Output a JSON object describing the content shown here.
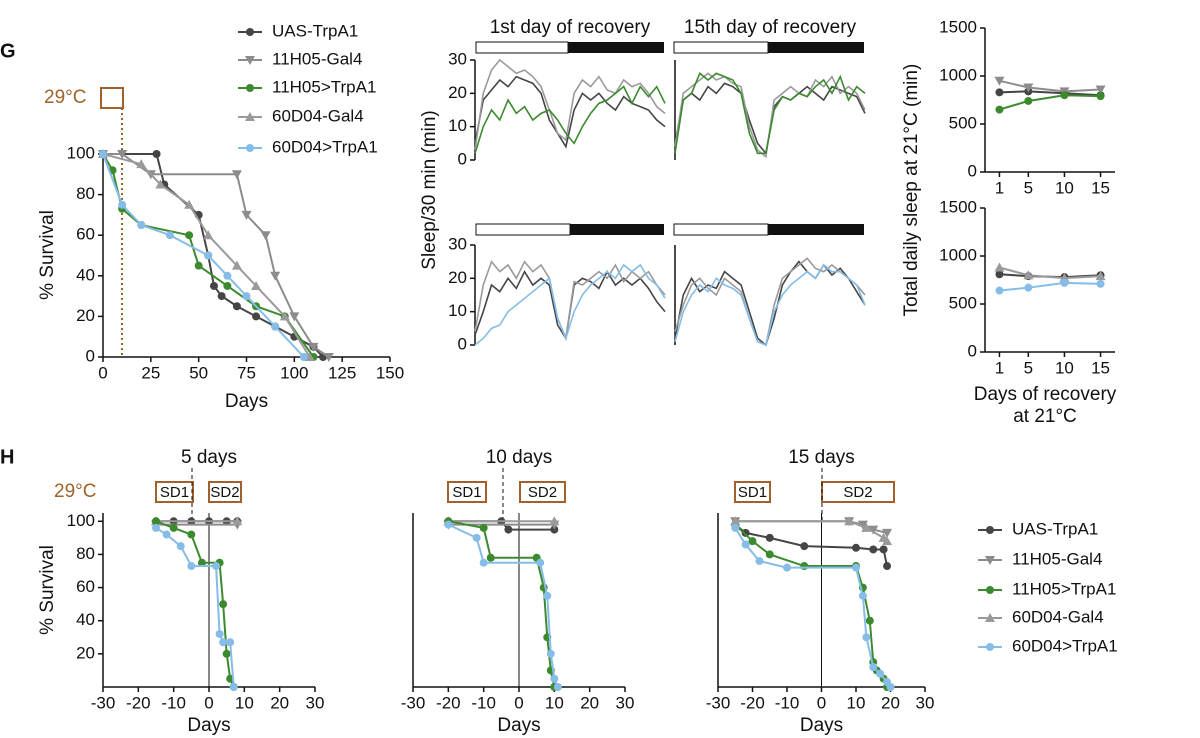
{
  "figure": {
    "panel_g": "G",
    "panel_h": "H",
    "temp_g": "29°C",
    "temp_h": "29°C"
  },
  "chart_data": [
    {
      "type": "line",
      "xlabel": "Days",
      "ylabel": "% Survival",
      "xlim": [
        0,
        150
      ],
      "ylim": [
        0,
        100
      ],
      "xticks": [
        0,
        25,
        50,
        75,
        100,
        125,
        150
      ],
      "yticks": [
        0,
        20,
        40,
        60,
        80,
        100
      ],
      "series": [
        {
          "name": "UAS-TrpA1",
          "color": "#454545",
          "marker": "circle",
          "x": [
            0,
            28,
            32,
            50,
            55,
            58,
            62,
            70,
            80,
            90,
            100,
            110,
            115
          ],
          "values": [
            100,
            100,
            85,
            70,
            50,
            35,
            30,
            25,
            20,
            15,
            10,
            5,
            0
          ]
        },
        {
          "name": "11H05-Gal4",
          "color": "#8c8c8c",
          "marker": "triangle-down",
          "x": [
            0,
            10,
            25,
            70,
            75,
            85,
            90,
            100,
            110,
            118
          ],
          "values": [
            100,
            100,
            90,
            90,
            70,
            60,
            40,
            20,
            5,
            0
          ]
        },
        {
          "name": "11H05>TrpA1",
          "color": "#3c8a2e",
          "marker": "circle",
          "x": [
            0,
            5,
            10,
            20,
            45,
            50,
            65,
            80,
            95,
            110
          ],
          "values": [
            100,
            92,
            73,
            65,
            60,
            45,
            35,
            25,
            20,
            0
          ]
        },
        {
          "name": "60D04-Gal4",
          "color": "#9a9a9a",
          "marker": "triangle-up",
          "x": [
            0,
            20,
            30,
            45,
            55,
            70,
            80,
            95,
            108
          ],
          "values": [
            100,
            95,
            85,
            75,
            60,
            45,
            35,
            20,
            0
          ]
        },
        {
          "name": "60D04>TrpA1",
          "color": "#86bde8",
          "marker": "circle",
          "x": [
            0,
            10,
            20,
            35,
            55,
            65,
            75,
            90,
            105
          ],
          "values": [
            100,
            75,
            65,
            60,
            50,
            40,
            30,
            15,
            0
          ]
        }
      ]
    },
    {
      "type": "line",
      "title": "1st day of recovery",
      "x": [
        0,
        1,
        2,
        3,
        4,
        5,
        6,
        7,
        8,
        9,
        10,
        11,
        12,
        13,
        14,
        15,
        16,
        17,
        18,
        19,
        20,
        21,
        22,
        23
      ],
      "xlim": [
        0,
        23
      ],
      "ylim": [
        0,
        30
      ],
      "yticks": [
        0,
        10,
        20,
        30
      ],
      "series": [
        {
          "color": "#454545",
          "values": [
            5,
            18,
            21,
            24,
            22,
            25,
            24,
            23,
            20,
            12,
            8,
            4,
            15,
            20,
            18,
            20,
            17,
            15,
            19,
            17,
            16,
            15,
            12,
            10
          ]
        },
        {
          "color": "#9a9a9a",
          "values": [
            3,
            20,
            27,
            30,
            28,
            26,
            27,
            25,
            22,
            15,
            8,
            6,
            20,
            24,
            22,
            25,
            21,
            20,
            24,
            22,
            23,
            20,
            16,
            14
          ]
        },
        {
          "color": "#3c8a2e",
          "values": [
            2,
            10,
            15,
            12,
            18,
            14,
            16,
            12,
            14,
            15,
            12,
            8,
            5,
            10,
            14,
            17,
            18,
            20,
            22,
            17,
            22,
            19,
            22,
            17
          ]
        }
      ]
    },
    {
      "type": "line",
      "title": "15th day of recovery",
      "x": [
        0,
        1,
        2,
        3,
        4,
        5,
        6,
        7,
        8,
        9,
        10,
        11,
        12,
        13,
        14,
        15,
        16,
        17,
        18,
        19,
        20,
        21,
        22,
        23
      ],
      "xlim": [
        0,
        23
      ],
      "ylim": [
        0,
        30
      ],
      "series": [
        {
          "color": "#454545",
          "values": [
            5,
            18,
            20,
            18,
            22,
            20,
            23,
            22,
            20,
            12,
            5,
            2,
            16,
            19,
            18,
            20,
            22,
            20,
            18,
            22,
            21,
            20,
            19,
            14
          ]
        },
        {
          "color": "#9a9a9a",
          "values": [
            4,
            20,
            22,
            24,
            26,
            24,
            25,
            23,
            22,
            10,
            3,
            1,
            18,
            20,
            22,
            20,
            19,
            24,
            22,
            25,
            20,
            22,
            20,
            15
          ]
        },
        {
          "color": "#3c8a2e",
          "values": [
            2,
            18,
            20,
            26,
            24,
            26,
            25,
            24,
            20,
            8,
            2,
            2,
            15,
            19,
            18,
            20,
            19,
            22,
            24,
            20,
            25,
            18,
            22,
            20
          ]
        }
      ]
    },
    {
      "type": "line",
      "ylabel": "Sleep/30 min (min)",
      "x": [
        0,
        1,
        2,
        3,
        4,
        5,
        6,
        7,
        8,
        9,
        10,
        11,
        12,
        13,
        14,
        15,
        16,
        17,
        18,
        19,
        20,
        21,
        22,
        23
      ],
      "xlim": [
        0,
        23
      ],
      "ylim": [
        0,
        30
      ],
      "yticks": [
        0,
        10,
        20,
        30
      ],
      "series": [
        {
          "color": "#454545",
          "values": [
            3,
            10,
            18,
            16,
            20,
            17,
            22,
            18,
            20,
            18,
            6,
            2,
            18,
            20,
            19,
            17,
            22,
            18,
            20,
            18,
            20,
            17,
            13,
            10
          ]
        },
        {
          "color": "#9a9a9a",
          "values": [
            4,
            18,
            25,
            22,
            24,
            20,
            25,
            22,
            24,
            20,
            8,
            2,
            19,
            18,
            20,
            22,
            20,
            24,
            19,
            22,
            20,
            22,
            18,
            15
          ]
        },
        {
          "color": "#86bde8",
          "values": [
            0,
            2,
            5,
            6,
            10,
            12,
            14,
            16,
            18,
            20,
            8,
            2,
            10,
            15,
            18,
            20,
            22,
            20,
            24,
            22,
            24,
            20,
            18,
            14
          ]
        }
      ]
    },
    {
      "type": "line",
      "x": [
        0,
        1,
        2,
        3,
        4,
        5,
        6,
        7,
        8,
        9,
        10,
        11,
        12,
        13,
        14,
        15,
        16,
        17,
        18,
        19,
        20,
        21,
        22,
        23
      ],
      "xlim": [
        0,
        23
      ],
      "ylim": [
        0,
        30
      ],
      "series": [
        {
          "color": "#454545",
          "values": [
            2,
            15,
            20,
            16,
            18,
            17,
            22,
            20,
            18,
            10,
            2,
            0,
            8,
            18,
            22,
            25,
            22,
            20,
            24,
            21,
            23,
            20,
            16,
            12
          ]
        },
        {
          "color": "#9a9a9a",
          "values": [
            4,
            12,
            18,
            20,
            17,
            15,
            20,
            18,
            16,
            8,
            1,
            0,
            12,
            20,
            22,
            24,
            26,
            23,
            22,
            24,
            22,
            20,
            18,
            15
          ]
        },
        {
          "color": "#86bde8",
          "values": [
            1,
            10,
            15,
            18,
            16,
            20,
            18,
            17,
            15,
            8,
            1,
            0,
            10,
            15,
            18,
            20,
            22,
            20,
            24,
            22,
            22,
            20,
            18,
            12
          ]
        }
      ]
    },
    {
      "type": "line",
      "x": [
        1,
        5,
        10,
        15
      ],
      "xlim": [
        -1,
        17
      ],
      "ylim": [
        0,
        1500
      ],
      "xticks": [
        1,
        5,
        10,
        15
      ],
      "yticks": [
        0,
        500,
        1000,
        1500
      ],
      "series": [
        {
          "color": "#454545",
          "marker": "circle",
          "values": [
            830,
            840,
            820,
            800
          ]
        },
        {
          "color": "#8c8c8c",
          "marker": "triangle-down",
          "values": [
            950,
            880,
            840,
            860
          ]
        },
        {
          "color": "#3c8a2e",
          "marker": "circle",
          "values": [
            650,
            740,
            800,
            790
          ]
        }
      ]
    },
    {
      "type": "line",
      "xlabel": [
        "Days of recovery",
        "at 21°C"
      ],
      "ylabel": "Total daily sleep at 21°C (min)",
      "x": [
        1,
        5,
        10,
        15
      ],
      "xlim": [
        -1,
        17
      ],
      "ylim": [
        0,
        1500
      ],
      "xticks": [
        1,
        5,
        10,
        15
      ],
      "yticks": [
        0,
        500,
        1000,
        1500
      ],
      "series": [
        {
          "color": "#454545",
          "marker": "circle",
          "values": [
            810,
            790,
            780,
            800
          ]
        },
        {
          "color": "#9a9a9a",
          "marker": "triangle-up",
          "values": [
            880,
            800,
            770,
            790
          ]
        },
        {
          "color": "#86bde8",
          "marker": "circle",
          "values": [
            640,
            670,
            720,
            710
          ]
        }
      ]
    },
    {
      "type": "line",
      "title": "5 days",
      "xlabel": "Days",
      "ylabel": "% Survival",
      "annotations": [
        "SD1",
        "SD2"
      ],
      "xlim": [
        -30,
        30
      ],
      "ylim": [
        0,
        105
      ],
      "xticks": [
        -30,
        -20,
        -10,
        0,
        10,
        20,
        30
      ],
      "yticks": [
        20,
        40,
        60,
        80,
        100
      ],
      "series": [
        {
          "color": "#454545",
          "marker": "circle",
          "x": [
            -15,
            -10,
            -5,
            0,
            5,
            8
          ],
          "values": [
            100,
            100,
            100,
            100,
            100,
            100
          ]
        },
        {
          "color": "#8c8c8c",
          "marker": "triangle-down",
          "x": [
            -15,
            8
          ],
          "values": [
            98,
            98
          ]
        },
        {
          "color": "#9a9a9a",
          "marker": "triangle-up",
          "x": [
            -15,
            8
          ],
          "values": [
            100,
            100
          ]
        },
        {
          "color": "#3c8a2e",
          "marker": "circle",
          "x": [
            -15,
            -10,
            -5,
            -2,
            3,
            4,
            5,
            6,
            7
          ],
          "values": [
            100,
            96,
            92,
            75,
            75,
            50,
            20,
            5,
            0
          ]
        },
        {
          "color": "#86bde8",
          "marker": "circle",
          "x": [
            -15,
            -12,
            -8,
            -5,
            2,
            3,
            4,
            6,
            7
          ],
          "values": [
            96,
            92,
            85,
            73,
            73,
            32,
            27,
            27,
            0
          ]
        }
      ]
    },
    {
      "type": "line",
      "title": "10 days",
      "xlabel": "Days",
      "annotations": [
        "SD1",
        "SD2"
      ],
      "xlim": [
        -30,
        30
      ],
      "ylim": [
        0,
        105
      ],
      "xticks": [
        -30,
        -20,
        -10,
        0,
        10,
        20,
        30
      ],
      "series": [
        {
          "color": "#454545",
          "marker": "circle",
          "x": [
            -20,
            -5,
            -3,
            10
          ],
          "values": [
            100,
            100,
            95,
            95
          ]
        },
        {
          "color": "#8c8c8c",
          "marker": "triangle-down",
          "x": [
            -20,
            10
          ],
          "values": [
            98,
            98
          ]
        },
        {
          "color": "#9a9a9a",
          "marker": "triangle-up",
          "x": [
            -20,
            10
          ],
          "values": [
            100,
            100
          ]
        },
        {
          "color": "#3c8a2e",
          "marker": "circle",
          "x": [
            -20,
            -10,
            -8,
            5,
            7,
            8,
            9,
            10
          ],
          "values": [
            100,
            96,
            78,
            78,
            60,
            30,
            10,
            0
          ]
        },
        {
          "color": "#86bde8",
          "marker": "circle",
          "x": [
            -20,
            -12,
            -10,
            6,
            8,
            9,
            10,
            11
          ],
          "values": [
            98,
            90,
            75,
            75,
            55,
            20,
            5,
            0
          ]
        }
      ]
    },
    {
      "type": "line",
      "title": "15 days",
      "xlabel": "Days",
      "annotations": [
        "SD1",
        "SD2"
      ],
      "xlim": [
        -30,
        30
      ],
      "ylim": [
        0,
        105
      ],
      "xticks": [
        -30,
        -20,
        -10,
        0,
        10,
        20,
        30
      ],
      "series": [
        {
          "name": "UAS-TrpA1",
          "color": "#454545",
          "marker": "circle",
          "x": [
            -25,
            -22,
            -15,
            -5,
            10,
            15,
            18,
            19
          ],
          "values": [
            98,
            93,
            90,
            85,
            84,
            83,
            83,
            73
          ]
        },
        {
          "name": "11H05-Gal4",
          "color": "#8c8c8c",
          "marker": "triangle-down",
          "x": [
            -25,
            8,
            12,
            15,
            19
          ],
          "values": [
            100,
            100,
            98,
            95,
            93
          ]
        },
        {
          "name": "11H05>TrpA1",
          "color": "#3c8a2e",
          "marker": "circle",
          "x": [
            -25,
            -20,
            -15,
            -5,
            10,
            12,
            14,
            15,
            16,
            18,
            19
          ],
          "values": [
            98,
            88,
            80,
            73,
            73,
            60,
            40,
            15,
            10,
            5,
            0
          ]
        },
        {
          "name": "60D04-Gal4",
          "color": "#9a9a9a",
          "marker": "triangle-up",
          "x": [
            -25,
            8,
            13,
            18,
            19
          ],
          "values": [
            100,
            100,
            96,
            90,
            88
          ]
        },
        {
          "name": "60D04>TrpA1",
          "color": "#86bde8",
          "marker": "circle",
          "x": [
            -25,
            -22,
            -18,
            -10,
            10,
            12,
            13,
            15,
            17,
            19,
            20
          ],
          "values": [
            96,
            86,
            76,
            72,
            72,
            55,
            30,
            12,
            8,
            3,
            0
          ]
        }
      ]
    }
  ]
}
